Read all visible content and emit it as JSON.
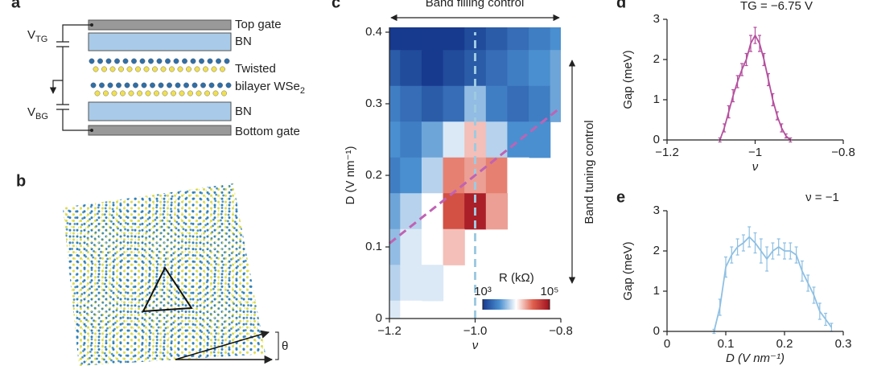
{
  "panels": [
    "a",
    "b",
    "c",
    "d",
    "e"
  ],
  "diagram": {
    "top_gate": "Top gate",
    "bn_top": "BN",
    "twisted": "Twisted",
    "bilayer": {
      "main": "bilayer WSe",
      "sub": "2"
    },
    "bn_bottom": "BN",
    "bottom_gate": "Bottom gate",
    "v_tg": {
      "main": "V",
      "sub": "TG"
    },
    "v_bg": {
      "main": "V",
      "sub": "BG"
    },
    "theta": "θ"
  },
  "chart_data": [
    {
      "type": "heatmap",
      "xlabel": "ν",
      "ylabel": "D (V nm⁻¹)",
      "annotation_top": "Band filling control",
      "annotation_right": "Band tuning control",
      "colorbar_title": "R (kΩ)",
      "clim": [
        3,
        5
      ],
      "cticks": [
        {
          "value": 3,
          "label": "10³"
        },
        {
          "value": 5,
          "label": "10⁵"
        }
      ],
      "colormap": [
        "#173a8e",
        "#4a8fd0",
        "#ffffff",
        "#e0604e",
        "#9e0f1f"
      ],
      "x": [
        -1.2,
        -1.15,
        -1.1,
        -1.05,
        -1.0,
        -0.95,
        -0.9,
        -0.85,
        -0.8
      ],
      "y": [
        0.4,
        0.35,
        0.3,
        0.25,
        0.2,
        0.15,
        0.1,
        0.05,
        0
      ],
      "z": [
        [
          3.0,
          3.0,
          3.0,
          3.0,
          3.1,
          3.2,
          3.3,
          3.4,
          3.5
        ],
        [
          3.2,
          3.1,
          3.0,
          3.1,
          3.2,
          3.3,
          3.4,
          3.5,
          3.6
        ],
        [
          3.4,
          3.3,
          3.2,
          3.3,
          3.7,
          3.4,
          3.3,
          3.4,
          3.6
        ],
        [
          3.5,
          3.4,
          3.6,
          3.9,
          4.2,
          3.8,
          3.5,
          3.5,
          null
        ],
        [
          3.4,
          3.5,
          3.8,
          4.4,
          4.3,
          4.4,
          4.0,
          null,
          null
        ],
        [
          3.6,
          3.8,
          4.0,
          4.6,
          4.9,
          4.3,
          null,
          null,
          null
        ],
        [
          3.7,
          3.9,
          4.0,
          4.2,
          null,
          null,
          null,
          null,
          null
        ],
        [
          3.8,
          3.9,
          3.9,
          null,
          null,
          null,
          null,
          null,
          null
        ],
        [
          3.9,
          4.0,
          null,
          null,
          null,
          null,
          null,
          null,
          null
        ]
      ],
      "lines": [
        {
          "color": "#9ecae1",
          "x": [
            -1.0,
            -1.0
          ],
          "y": [
            0,
            0.4
          ]
        },
        {
          "color": "#c062b4",
          "x": [
            -1.2,
            -0.8
          ],
          "y": [
            0.105,
            0.295
          ]
        }
      ],
      "xlim": [
        -1.2,
        -0.8
      ],
      "ylim": [
        0,
        0.4
      ],
      "xticks": [
        {
          "value": -1.2,
          "label": "−1.2"
        },
        {
          "value": -1.0,
          "label": "−1.0"
        },
        {
          "value": -0.8,
          "label": "−0.8"
        }
      ],
      "yticks": [
        0,
        0.1,
        0.2,
        0.3,
        0.4
      ]
    },
    {
      "type": "line",
      "title": "TG = −6.75 V",
      "xlabel": "ν",
      "ylabel": "Gap (meV)",
      "color": "#b4509e",
      "x": [
        -1.08,
        -1.07,
        -1.06,
        -1.05,
        -1.04,
        -1.03,
        -1.02,
        -1.01,
        -1.0,
        -0.99,
        -0.98,
        -0.97,
        -0.96,
        -0.95,
        -0.94,
        -0.93,
        -0.92
      ],
      "values": [
        0,
        0.3,
        0.7,
        1.1,
        1.45,
        1.75,
        2.0,
        2.4,
        2.6,
        2.4,
        2.0,
        1.5,
        1.0,
        0.6,
        0.3,
        0.1,
        0
      ],
      "errors": [
        0.05,
        0.1,
        0.15,
        0.15,
        0.15,
        0.15,
        0.15,
        0.2,
        0.2,
        0.2,
        0.15,
        0.15,
        0.15,
        0.1,
        0.1,
        0.05,
        0.05
      ],
      "xlim": [
        -1.2,
        -0.8
      ],
      "ylim": [
        0,
        3
      ],
      "xticks": [
        {
          "value": -1.2,
          "label": "−1.2"
        },
        {
          "value": -1,
          "label": "−1"
        },
        {
          "value": -0.8,
          "label": "−0.8"
        }
      ],
      "yticks": [
        0,
        1,
        2,
        3
      ]
    },
    {
      "type": "line",
      "title": "ν = −1",
      "xlabel": "D (V nm⁻¹)",
      "ylabel": "Gap (meV)",
      "color": "#8fc0e3",
      "x": [
        0.08,
        0.09,
        0.1,
        0.11,
        0.12,
        0.13,
        0.14,
        0.15,
        0.16,
        0.17,
        0.18,
        0.19,
        0.2,
        0.21,
        0.22,
        0.23,
        0.24,
        0.25,
        0.26,
        0.27,
        0.28
      ],
      "values": [
        0,
        0.6,
        1.6,
        1.9,
        2.1,
        2.2,
        2.35,
        2.2,
        2.0,
        1.8,
        2.0,
        2.1,
        2.0,
        2.0,
        1.9,
        1.5,
        1.2,
        0.9,
        0.5,
        0.3,
        0.1
      ],
      "errors": [
        0.05,
        0.2,
        0.25,
        0.2,
        0.2,
        0.2,
        0.25,
        0.25,
        0.3,
        0.3,
        0.2,
        0.2,
        0.2,
        0.2,
        0.2,
        0.25,
        0.2,
        0.2,
        0.2,
        0.15,
        0.1
      ],
      "xlim": [
        0,
        0.3
      ],
      "ylim": [
        0,
        3
      ],
      "xticks": [
        0,
        0.1,
        0.2,
        0.3
      ],
      "yticks": [
        0,
        1,
        2,
        3
      ]
    }
  ]
}
